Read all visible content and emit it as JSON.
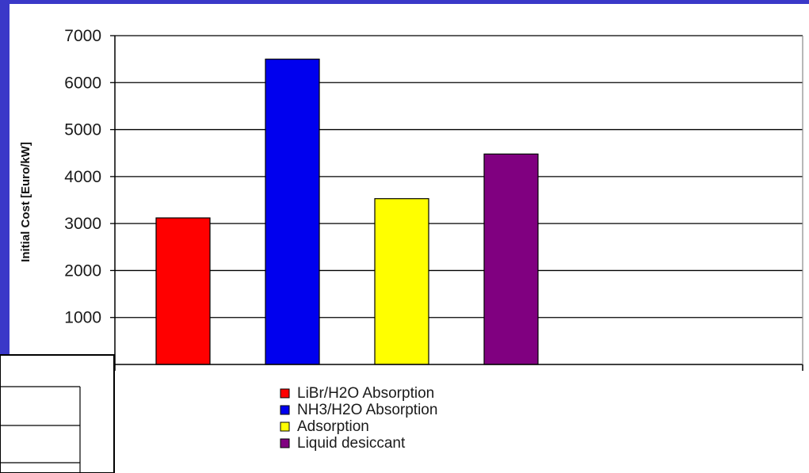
{
  "chart_data": {
    "type": "bar",
    "ylabel": "Initial Cost [Euro/kW]",
    "xlabel": "",
    "ylim": [
      0,
      7000
    ],
    "yticks": [
      1000,
      2000,
      3000,
      4000,
      5000,
      6000,
      7000
    ],
    "grid": true,
    "legend_position": "bottom",
    "categories": [
      "LiBr/H2O Absorption",
      "NH3/H2O Absorption",
      "Adsorption",
      "Liquid desiccant"
    ],
    "values": [
      3120,
      6500,
      3530,
      4480
    ],
    "colors": [
      "#ff0000",
      "#0000ee",
      "#ffff00",
      "#800080"
    ]
  },
  "colors": {
    "page_border": "#3a38c8",
    "chart_background": "#ffffff"
  }
}
